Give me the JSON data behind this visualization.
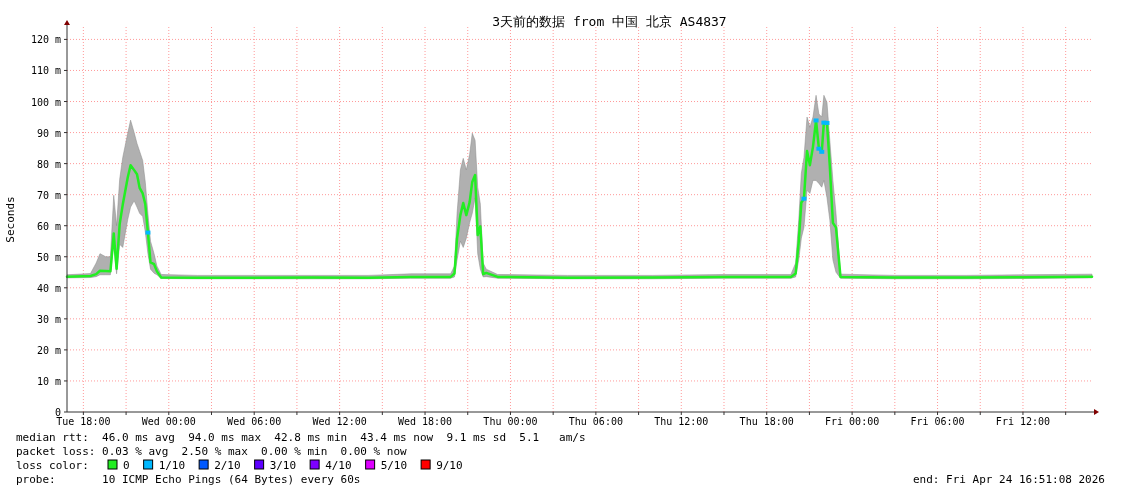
{
  "chart_data": {
    "type": "line",
    "title": "3天前的数据 from 中国 北京 AS4837",
    "ylabel": "Seconds",
    "legend_title": "loss color:",
    "legend": "bottom",
    "grid": true,
    "xlim": [
      "2026-04-21T16:51",
      "2026-04-24T16:51"
    ],
    "xticks": [
      {
        "value": "2026-04-21T18:00",
        "label": "Tue 18:00"
      },
      {
        "value": "2026-04-21T21:00",
        "label": null
      },
      {
        "value": "2026-04-22T00:00",
        "label": "Wed 00:00"
      },
      {
        "value": "2026-04-22T03:00",
        "label": null
      },
      {
        "value": "2026-04-22T06:00",
        "label": "Wed 06:00"
      },
      {
        "value": "2026-04-22T09:00",
        "label": null
      },
      {
        "value": "2026-04-22T12:00",
        "label": "Wed 12:00"
      },
      {
        "value": "2026-04-22T15:00",
        "label": null
      },
      {
        "value": "2026-04-22T18:00",
        "label": "Wed 18:00"
      },
      {
        "value": "2026-04-22T21:00",
        "label": null
      },
      {
        "value": "2026-04-23T00:00",
        "label": "Thu 00:00"
      },
      {
        "value": "2026-04-23T03:00",
        "label": null
      },
      {
        "value": "2026-04-23T06:00",
        "label": "Thu 06:00"
      },
      {
        "value": "2026-04-23T09:00",
        "label": null
      },
      {
        "value": "2026-04-23T12:00",
        "label": "Thu 12:00"
      },
      {
        "value": "2026-04-23T15:00",
        "label": null
      },
      {
        "value": "2026-04-23T18:00",
        "label": "Thu 18:00"
      },
      {
        "value": "2026-04-23T21:00",
        "label": null
      },
      {
        "value": "2026-04-24T00:00",
        "label": "Fri 00:00"
      },
      {
        "value": "2026-04-24T03:00",
        "label": null
      },
      {
        "value": "2026-04-24T06:00",
        "label": "Fri 06:00"
      },
      {
        "value": "2026-04-24T09:00",
        "label": null
      },
      {
        "value": "2026-04-24T12:00",
        "label": "Fri 12:00"
      },
      {
        "value": "2026-04-24T15:00",
        "label": null
      }
    ],
    "ylim": [
      0,
      124
    ],
    "yticks": [
      0,
      {
        "value": 10,
        "label": "10 m"
      },
      {
        "value": 20,
        "label": "20 m"
      },
      {
        "value": 30,
        "label": "30 m"
      },
      {
        "value": 40,
        "label": "40 m"
      },
      {
        "value": 50,
        "label": "50 m"
      },
      {
        "value": 60,
        "label": "60 m"
      },
      {
        "value": 70,
        "label": "70 m"
      },
      {
        "value": 80,
        "label": "80 m"
      },
      {
        "value": 90,
        "label": "90 m"
      },
      {
        "value": 100,
        "label": "100 m"
      },
      {
        "value": 110,
        "label": "110 m"
      },
      {
        "value": 120,
        "label": "120 m"
      }
    ],
    "series": [
      {
        "name": "0",
        "color": "#22ee22",
        "x": [
          "2026-04-21T16:51",
          "2026-04-21T18:30",
          "2026-04-21T18:54",
          "2026-04-21T19:10",
          "2026-04-21T19:34",
          "2026-04-21T19:54",
          "2026-04-21T20:08",
          "2026-04-21T20:20",
          "2026-04-21T20:33",
          "2026-04-21T20:46",
          "2026-04-21T21:07",
          "2026-04-21T21:19",
          "2026-04-21T21:34",
          "2026-04-21T21:46",
          "2026-04-21T21:57",
          "2026-04-21T22:10",
          "2026-04-21T22:21",
          "2026-04-21T22:32",
          "2026-04-21T22:43",
          "2026-04-21T22:58",
          "2026-04-21T23:10",
          "2026-04-21T23:28",
          "2026-04-22T02:00",
          "2026-04-22T06:00",
          "2026-04-22T10:00",
          "2026-04-22T14:00",
          "2026-04-22T17:00",
          "2026-04-22T19:48",
          "2026-04-22T20:04",
          "2026-04-22T20:15",
          "2026-04-22T20:29",
          "2026-04-22T20:41",
          "2026-04-22T20:54",
          "2026-04-22T21:08",
          "2026-04-22T21:19",
          "2026-04-22T21:31",
          "2026-04-22T21:42",
          "2026-04-22T21:53",
          "2026-04-22T22:05",
          "2026-04-22T22:18",
          "2026-04-22T23:06",
          "2026-04-23T04:00",
          "2026-04-23T10:00",
          "2026-04-23T15:00",
          "2026-04-23T19:42",
          "2026-04-23T20:02",
          "2026-04-23T20:15",
          "2026-04-23T20:26",
          "2026-04-23T20:37",
          "2026-04-23T20:50",
          "2026-04-23T21:02",
          "2026-04-23T21:15",
          "2026-04-23T21:28",
          "2026-04-23T21:40",
          "2026-04-23T21:52",
          "2026-04-23T22:01",
          "2026-04-23T22:14",
          "2026-04-23T22:26",
          "2026-04-23T22:39",
          "2026-04-23T22:52",
          "2026-04-23T23:11",
          "2026-04-24T03:00",
          "2026-04-24T08:00",
          "2026-04-24T12:00",
          "2026-04-24T16:51"
        ],
        "values": [
          43.6,
          43.8,
          44.4,
          45.5,
          45.4,
          45.3,
          57.5,
          46.1,
          60.5,
          66.8,
          75.5,
          79.5,
          77.9,
          76.6,
          72.2,
          70.4,
          66.9,
          57.8,
          48.2,
          47.6,
          45.3,
          43.3,
          43.2,
          43.2,
          43.3,
          43.2,
          43.5,
          43.5,
          44.6,
          55.9,
          63.4,
          67.3,
          63.4,
          67.6,
          74.1,
          76.3,
          57.0,
          59.8,
          44.4,
          44.8,
          43.5,
          43.2,
          43.3,
          43.5,
          43.5,
          44.6,
          54.8,
          67.5,
          68.7,
          84.1,
          79.5,
          85.4,
          93.9,
          84.8,
          83.8,
          93.2,
          93.1,
          79.2,
          60.9,
          59.4,
          43.5,
          43.3,
          43.3,
          43.4,
          43.6
        ],
        "lower": [
          43.2,
          43.3,
          43.6,
          44.2,
          44.2,
          44.2,
          54,
          44.5,
          54,
          53,
          62,
          66,
          68,
          66,
          64,
          63,
          58,
          51,
          46,
          44.7,
          44.2,
          43,
          42.9,
          42.9,
          42.9,
          42.9,
          43.1,
          43.1,
          43.5,
          49,
          55,
          53,
          56,
          61,
          64,
          69,
          51,
          46,
          43.5,
          43.6,
          43.1,
          42.9,
          42.9,
          43.1,
          43.1,
          43.5,
          49,
          56,
          59.5,
          71.4,
          70.4,
          74.6,
          74.6,
          73.6,
          72.4,
          74.6,
          69,
          61.8,
          49,
          45,
          43.1,
          42.9,
          42.9,
          43,
          43.2
        ],
        "upper": [
          44.2,
          44.6,
          48,
          51,
          50,
          50,
          69.8,
          60,
          75,
          82,
          89.8,
          94,
          90,
          86.5,
          84,
          81,
          74,
          64,
          55,
          51,
          47,
          44.3,
          44,
          44,
          44,
          44,
          44.5,
          44.5,
          47,
          64,
          78,
          81.7,
          78,
          83,
          89.8,
          87.5,
          72.4,
          67,
          48,
          46,
          44.3,
          44,
          44,
          44.3,
          44.3,
          48,
          61.8,
          76.9,
          82,
          95,
          91.7,
          95,
          102,
          96,
          95,
          102,
          99.7,
          87.5,
          74.6,
          64,
          44.4,
          44,
          44,
          44.2,
          44.4
        ]
      },
      {
        "name": "1/10",
        "color": "#00b8ff",
        "type": "scatter",
        "marker": "square",
        "x": [
          "2026-04-21T22:32",
          "2026-04-23T20:37",
          "2026-04-23T21:28",
          "2026-04-23T21:40",
          "2026-04-23T21:52",
          "2026-04-23T22:01",
          "2026-04-23T22:14"
        ],
        "values": [
          57.8,
          68.7,
          93.9,
          84.8,
          83.8,
          93.2,
          93.1
        ]
      },
      {
        "name": "2/10",
        "color": "#0059ff",
        "type": "scatter",
        "marker": "square"
      },
      {
        "name": "3/10",
        "color": "#5e00ff",
        "type": "scatter",
        "marker": "square"
      },
      {
        "name": "4/10",
        "color": "#7e00ff",
        "type": "scatter",
        "marker": "square"
      },
      {
        "name": "5/10",
        "color": "#dd00ff",
        "type": "scatter",
        "marker": "square"
      },
      {
        "name": "9/10",
        "color": "#ff0000",
        "type": "scatter",
        "marker": "square"
      }
    ],
    "annotations": [
      "median rtt:  46.0 ms avg  94.0 ms max  42.8 ms min  43.4 ms now  9.1 ms sd  5.1   am/s",
      "packet loss: 0.03 % avg  2.50 % max  0.00 % min  0.00 % now",
      "probe:       10 ICMP Echo Pings (64 Bytes) every 60s",
      "end: Fri Apr 24 16:51:08 2026"
    ]
  }
}
